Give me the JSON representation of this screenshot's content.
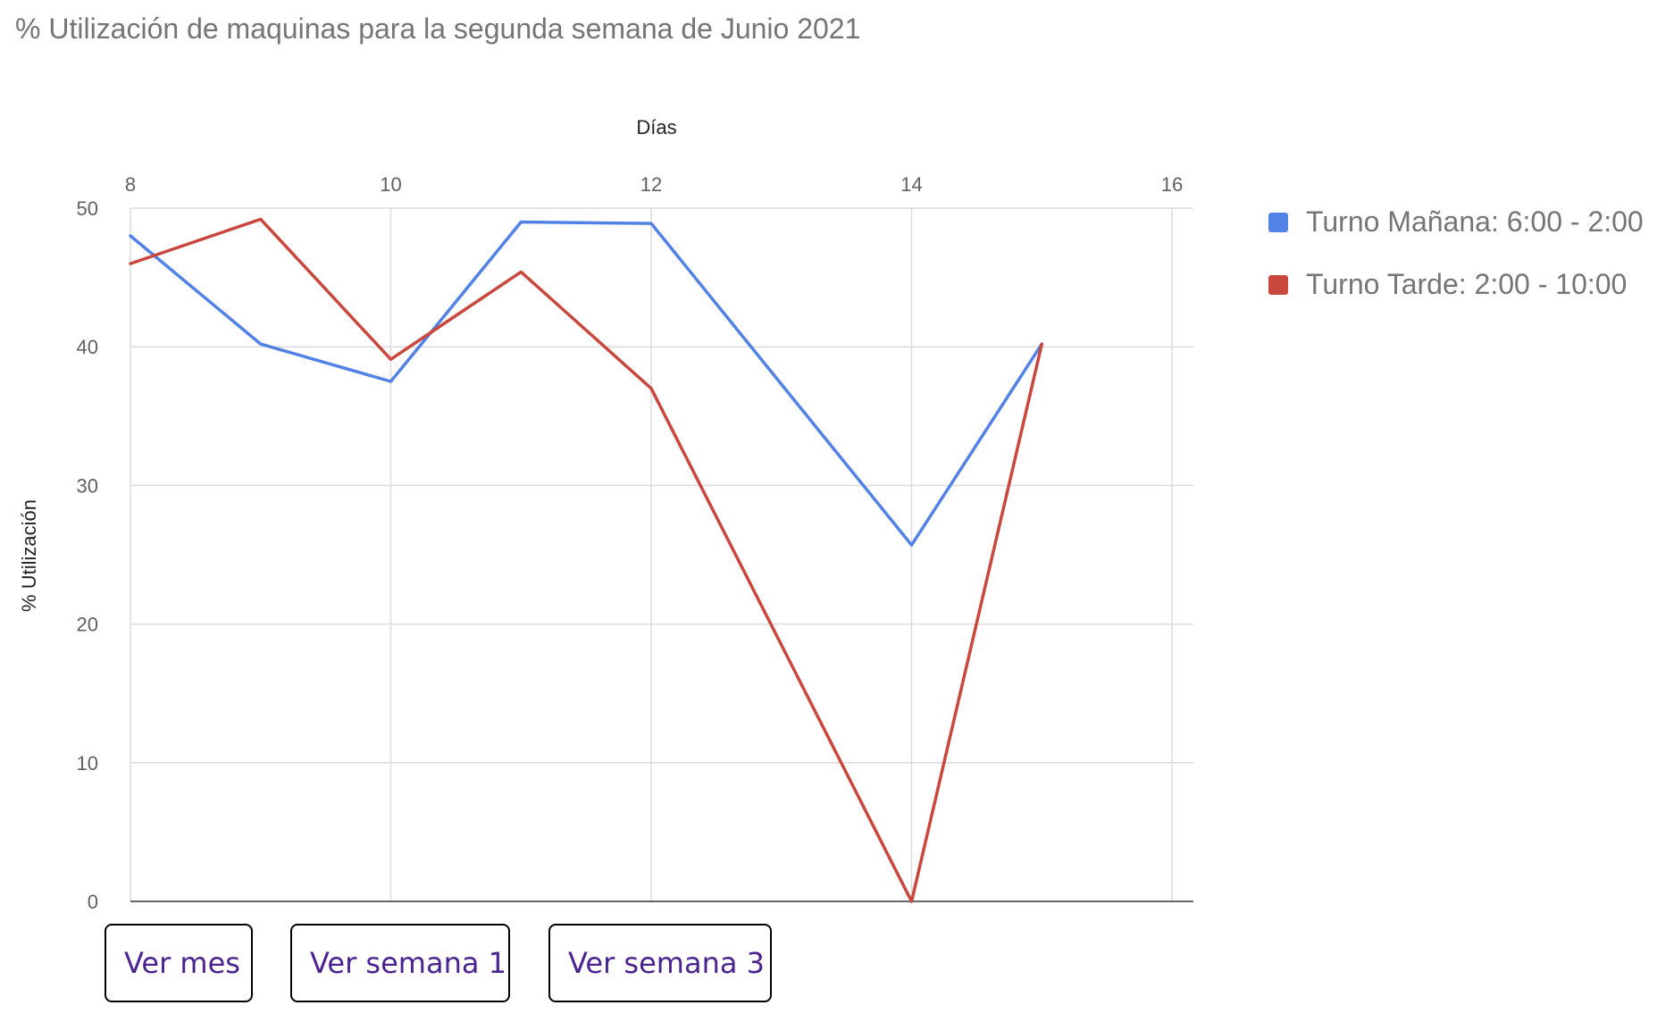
{
  "chart_data": {
    "type": "line",
    "title": "% Utilización de maquinas para la segunda semana de Junio 2021",
    "xlabel": "Días",
    "ylabel": "% Utilización",
    "xlim": [
      8,
      16
    ],
    "ylim": [
      0,
      50
    ],
    "x_ticks": [
      8,
      10,
      12,
      14,
      16
    ],
    "y_ticks": [
      0,
      10,
      20,
      30,
      40,
      50
    ],
    "x_axis_position": "top",
    "grid": true,
    "legend_position": "right",
    "x": [
      8,
      9,
      10,
      11,
      12,
      14,
      15
    ],
    "series": [
      {
        "name": "Turno Mañana: 6:00 - 2:00",
        "color": "#5282e6",
        "values": [
          48,
          40.2,
          37.5,
          49,
          48.9,
          25.7,
          40.2
        ]
      },
      {
        "name": "Turno Tarde: 2:00 - 10:00",
        "color": "#c9473c",
        "values": [
          46,
          49.2,
          39.1,
          45.4,
          37,
          0,
          40.2
        ]
      }
    ]
  },
  "buttons": {
    "month": "Ver mes",
    "week1": "Ver semana 1",
    "week3": "Ver semana 3"
  }
}
